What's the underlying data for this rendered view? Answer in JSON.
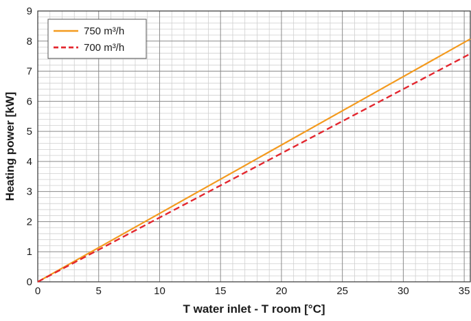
{
  "chart_data": {
    "type": "line",
    "title": "",
    "xlabel": "T water inlet - T room [°C]",
    "ylabel": "Heating power [kW]",
    "xlim": [
      0,
      35.5
    ],
    "ylim": [
      0,
      9
    ],
    "xticks": [
      0,
      5,
      10,
      15,
      20,
      25,
      30,
      35
    ],
    "yticks": [
      0,
      1,
      2,
      3,
      4,
      5,
      6,
      7,
      8,
      9
    ],
    "grid": true,
    "legend_position": "top-left",
    "series": [
      {
        "name": "750 m³/h",
        "x": [
          0,
          35.5
        ],
        "y": [
          0,
          8.07
        ],
        "color": "#f39a1e",
        "style": "solid"
      },
      {
        "name": "700 m³/h",
        "x": [
          0,
          35.5
        ],
        "y": [
          0,
          7.58
        ],
        "color": "#e3262e",
        "style": "dashed"
      }
    ]
  }
}
